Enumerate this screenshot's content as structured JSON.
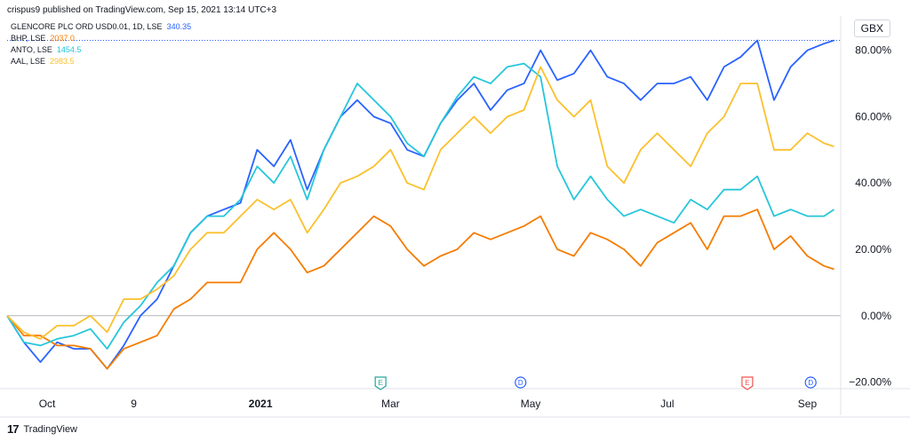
{
  "header": {
    "published": "crispus9 published on TradingView.com, Sep 15, 2021 13:14 UTC+3"
  },
  "unit_label": "GBX",
  "footer": {
    "brand": "TradingView",
    "logo_text": "17"
  },
  "event_markers": [
    {
      "label": "E",
      "x": 112,
      "color": "#26a69a"
    },
    {
      "label": "D",
      "x": 154,
      "color": "#2962ff"
    },
    {
      "label": "E",
      "x": 222,
      "color": "#ef5350"
    },
    {
      "label": "D",
      "x": 241,
      "color": "#2962ff"
    }
  ],
  "chart_data": {
    "type": "line",
    "x_unit": "trading-day index (Sep 2020 – Sep 2021)",
    "xlim": [
      0,
      250
    ],
    "ylim": [
      -0.22,
      0.85
    ],
    "x_ticks": [
      {
        "label": "Oct",
        "x": 12
      },
      {
        "label": "9",
        "x": 38
      },
      {
        "label": "2021",
        "x": 76,
        "bold": true
      },
      {
        "label": "Mar",
        "x": 115
      },
      {
        "label": "May",
        "x": 157
      },
      {
        "label": "Jul",
        "x": 198
      },
      {
        "label": "Sep",
        "x": 240
      }
    ],
    "y_ticks": [
      {
        "label": "80.00%",
        "value": 0.8
      },
      {
        "label": "60.00%",
        "value": 0.6
      },
      {
        "label": "40.00%",
        "value": 0.4
      },
      {
        "label": "20.00%",
        "value": 0.2
      },
      {
        "label": "0.00%",
        "value": 0.0
      },
      {
        "label": "−20.00%",
        "value": -0.2
      }
    ],
    "series": [
      {
        "name": "GLENCORE PLC ORD USD0.01, 1D, LSE",
        "last": "340.35",
        "color": "#2962ff",
        "points": [
          [
            0,
            0
          ],
          [
            5,
            -0.08
          ],
          [
            10,
            -0.14
          ],
          [
            15,
            -0.08
          ],
          [
            20,
            -0.1
          ],
          [
            25,
            -0.1
          ],
          [
            30,
            -0.16
          ],
          [
            35,
            -0.09
          ],
          [
            40,
            0.0
          ],
          [
            45,
            0.05
          ],
          [
            50,
            0.15
          ],
          [
            55,
            0.25
          ],
          [
            60,
            0.3
          ],
          [
            65,
            0.32
          ],
          [
            70,
            0.34
          ],
          [
            75,
            0.5
          ],
          [
            80,
            0.45
          ],
          [
            85,
            0.53
          ],
          [
            90,
            0.38
          ],
          [
            95,
            0.5
          ],
          [
            100,
            0.6
          ],
          [
            105,
            0.65
          ],
          [
            110,
            0.6
          ],
          [
            115,
            0.58
          ],
          [
            120,
            0.5
          ],
          [
            125,
            0.48
          ],
          [
            130,
            0.58
          ],
          [
            135,
            0.65
          ],
          [
            140,
            0.7
          ],
          [
            145,
            0.62
          ],
          [
            150,
            0.68
          ],
          [
            155,
            0.7
          ],
          [
            160,
            0.8
          ],
          [
            165,
            0.71
          ],
          [
            170,
            0.73
          ],
          [
            175,
            0.8
          ],
          [
            180,
            0.72
          ],
          [
            185,
            0.7
          ],
          [
            190,
            0.65
          ],
          [
            195,
            0.7
          ],
          [
            200,
            0.7
          ],
          [
            205,
            0.72
          ],
          [
            210,
            0.65
          ],
          [
            215,
            0.75
          ],
          [
            220,
            0.78
          ],
          [
            225,
            0.83
          ],
          [
            230,
            0.65
          ],
          [
            235,
            0.75
          ],
          [
            240,
            0.8
          ],
          [
            245,
            0.82
          ],
          [
            248,
            0.83
          ]
        ]
      },
      {
        "name": "BHP, LSE",
        "last": "2037.0",
        "color": "#f57c00",
        "points": [
          [
            0,
            0
          ],
          [
            5,
            -0.06
          ],
          [
            10,
            -0.06
          ],
          [
            15,
            -0.09
          ],
          [
            20,
            -0.09
          ],
          [
            25,
            -0.1
          ],
          [
            30,
            -0.16
          ],
          [
            35,
            -0.1
          ],
          [
            40,
            -0.08
          ],
          [
            45,
            -0.06
          ],
          [
            50,
            0.02
          ],
          [
            55,
            0.05
          ],
          [
            60,
            0.1
          ],
          [
            65,
            0.1
          ],
          [
            70,
            0.1
          ],
          [
            75,
            0.2
          ],
          [
            80,
            0.25
          ],
          [
            85,
            0.2
          ],
          [
            90,
            0.13
          ],
          [
            95,
            0.15
          ],
          [
            100,
            0.2
          ],
          [
            105,
            0.25
          ],
          [
            110,
            0.3
          ],
          [
            115,
            0.27
          ],
          [
            120,
            0.2
          ],
          [
            125,
            0.15
          ],
          [
            130,
            0.18
          ],
          [
            135,
            0.2
          ],
          [
            140,
            0.25
          ],
          [
            145,
            0.23
          ],
          [
            150,
            0.25
          ],
          [
            155,
            0.27
          ],
          [
            160,
            0.3
          ],
          [
            165,
            0.2
          ],
          [
            170,
            0.18
          ],
          [
            175,
            0.25
          ],
          [
            180,
            0.23
          ],
          [
            185,
            0.2
          ],
          [
            190,
            0.15
          ],
          [
            195,
            0.22
          ],
          [
            200,
            0.25
          ],
          [
            205,
            0.28
          ],
          [
            210,
            0.2
          ],
          [
            215,
            0.3
          ],
          [
            220,
            0.3
          ],
          [
            225,
            0.32
          ],
          [
            230,
            0.2
          ],
          [
            235,
            0.24
          ],
          [
            240,
            0.18
          ],
          [
            245,
            0.15
          ],
          [
            248,
            0.14
          ]
        ]
      },
      {
        "name": "ANTO, LSE",
        "last": "1454.5",
        "color": "#26c6da",
        "points": [
          [
            0,
            0
          ],
          [
            5,
            -0.08
          ],
          [
            10,
            -0.09
          ],
          [
            15,
            -0.07
          ],
          [
            20,
            -0.06
          ],
          [
            25,
            -0.04
          ],
          [
            30,
            -0.1
          ],
          [
            35,
            -0.02
          ],
          [
            40,
            0.03
          ],
          [
            45,
            0.1
          ],
          [
            50,
            0.15
          ],
          [
            55,
            0.25
          ],
          [
            60,
            0.3
          ],
          [
            65,
            0.3
          ],
          [
            70,
            0.35
          ],
          [
            75,
            0.45
          ],
          [
            80,
            0.4
          ],
          [
            85,
            0.48
          ],
          [
            90,
            0.35
          ],
          [
            95,
            0.5
          ],
          [
            100,
            0.6
          ],
          [
            105,
            0.7
          ],
          [
            110,
            0.65
          ],
          [
            115,
            0.6
          ],
          [
            120,
            0.52
          ],
          [
            125,
            0.48
          ],
          [
            130,
            0.58
          ],
          [
            135,
            0.66
          ],
          [
            140,
            0.72
          ],
          [
            145,
            0.7
          ],
          [
            150,
            0.75
          ],
          [
            155,
            0.76
          ],
          [
            160,
            0.72
          ],
          [
            165,
            0.45
          ],
          [
            170,
            0.35
          ],
          [
            175,
            0.42
          ],
          [
            180,
            0.35
          ],
          [
            185,
            0.3
          ],
          [
            190,
            0.32
          ],
          [
            195,
            0.3
          ],
          [
            200,
            0.28
          ],
          [
            205,
            0.35
          ],
          [
            210,
            0.32
          ],
          [
            215,
            0.38
          ],
          [
            220,
            0.38
          ],
          [
            225,
            0.42
          ],
          [
            230,
            0.3
          ],
          [
            235,
            0.32
          ],
          [
            240,
            0.3
          ],
          [
            245,
            0.3
          ],
          [
            248,
            0.32
          ]
        ]
      },
      {
        "name": "AAL, LSE",
        "last": "2983.5",
        "color": "#fbc02d",
        "points": [
          [
            0,
            0
          ],
          [
            5,
            -0.05
          ],
          [
            10,
            -0.07
          ],
          [
            15,
            -0.03
          ],
          [
            20,
            -0.03
          ],
          [
            25,
            0.0
          ],
          [
            30,
            -0.05
          ],
          [
            35,
            0.05
          ],
          [
            40,
            0.05
          ],
          [
            45,
            0.08
          ],
          [
            50,
            0.12
          ],
          [
            55,
            0.2
          ],
          [
            60,
            0.25
          ],
          [
            65,
            0.25
          ],
          [
            70,
            0.3
          ],
          [
            75,
            0.35
          ],
          [
            80,
            0.32
          ],
          [
            85,
            0.35
          ],
          [
            90,
            0.25
          ],
          [
            95,
            0.32
          ],
          [
            100,
            0.4
          ],
          [
            105,
            0.42
          ],
          [
            110,
            0.45
          ],
          [
            115,
            0.5
          ],
          [
            120,
            0.4
          ],
          [
            125,
            0.38
          ],
          [
            130,
            0.5
          ],
          [
            135,
            0.55
          ],
          [
            140,
            0.6
          ],
          [
            145,
            0.55
          ],
          [
            150,
            0.6
          ],
          [
            155,
            0.62
          ],
          [
            160,
            0.75
          ],
          [
            165,
            0.65
          ],
          [
            170,
            0.6
          ],
          [
            175,
            0.65
          ],
          [
            180,
            0.45
          ],
          [
            185,
            0.4
          ],
          [
            190,
            0.5
          ],
          [
            195,
            0.55
          ],
          [
            200,
            0.5
          ],
          [
            205,
            0.45
          ],
          [
            210,
            0.55
          ],
          [
            215,
            0.6
          ],
          [
            220,
            0.7
          ],
          [
            225,
            0.7
          ],
          [
            230,
            0.5
          ],
          [
            235,
            0.5
          ],
          [
            240,
            0.55
          ],
          [
            245,
            0.52
          ],
          [
            248,
            0.51
          ]
        ]
      }
    ]
  }
}
